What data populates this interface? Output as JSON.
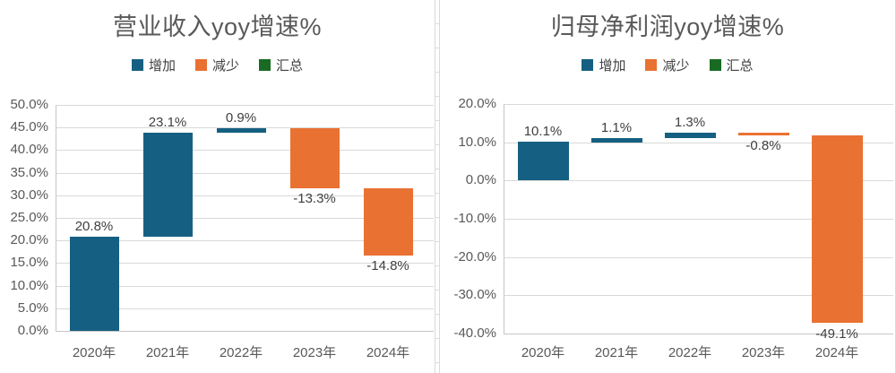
{
  "colors": {
    "increase": "#156082",
    "decrease": "#e97132",
    "total": "#196b24",
    "title_text": "#595959",
    "axis_text": "#595959",
    "data_label_text": "#404040",
    "legend_text": "#404040",
    "gridline": "#d9d9d9",
    "axis_line": "#c6c6c6",
    "chart_border": "#d9d9d9",
    "background": "#ffffff"
  },
  "chart_data": [
    {
      "type": "waterfall",
      "title": "营业收入yoy增速%",
      "legend_position": "top",
      "grid": true,
      "legend": [
        {
          "key": "increase",
          "label": "增加"
        },
        {
          "key": "decrease",
          "label": "减少"
        },
        {
          "key": "total",
          "label": "汇总"
        }
      ],
      "categories": [
        "2020年",
        "2021年",
        "2022年",
        "2023年",
        "2024年"
      ],
      "bars": [
        {
          "category": "2020年",
          "change_pct": 20.8,
          "start": 0.0,
          "end": 20.8,
          "kind": "increase",
          "label": "20.8%",
          "label_position": "above"
        },
        {
          "category": "2021年",
          "change_pct": 23.1,
          "start": 20.8,
          "end": 43.9,
          "kind": "increase",
          "label": "23.1%",
          "label_position": "above"
        },
        {
          "category": "2022年",
          "change_pct": 0.9,
          "start": 43.9,
          "end": 44.8,
          "kind": "increase",
          "label": "0.9%",
          "label_position": "above"
        },
        {
          "category": "2023年",
          "change_pct": -13.3,
          "start": 44.8,
          "end": 31.5,
          "kind": "decrease",
          "label": "-13.3%",
          "label_position": "below"
        },
        {
          "category": "2024年",
          "change_pct": -14.8,
          "start": 31.5,
          "end": 16.7,
          "kind": "decrease",
          "label": "-14.8%",
          "label_position": "below"
        }
      ],
      "ylim": [
        0,
        50
      ],
      "ytick_step": 5,
      "yticks": [
        {
          "value": 0,
          "label": "0.0%"
        },
        {
          "value": 5,
          "label": "5.0%"
        },
        {
          "value": 10,
          "label": "10.0%"
        },
        {
          "value": 15,
          "label": "15.0%"
        },
        {
          "value": 20,
          "label": "20.0%"
        },
        {
          "value": 25,
          "label": "25.0%"
        },
        {
          "value": 30,
          "label": "30.0%"
        },
        {
          "value": 35,
          "label": "35.0%"
        },
        {
          "value": 40,
          "label": "40.0%"
        },
        {
          "value": 45,
          "label": "45.0%"
        },
        {
          "value": 50,
          "label": "50.0%"
        }
      ]
    },
    {
      "type": "waterfall",
      "title": "归母净利润yoy增速%",
      "legend_position": "top",
      "grid": true,
      "legend": [
        {
          "key": "increase",
          "label": "增加"
        },
        {
          "key": "decrease",
          "label": "减少"
        },
        {
          "key": "total",
          "label": "汇总"
        }
      ],
      "categories": [
        "2020年",
        "2021年",
        "2022年",
        "2023年",
        "2024年"
      ],
      "bars": [
        {
          "category": "2020年",
          "change_pct": 10.1,
          "start": 0.0,
          "end": 10.1,
          "kind": "increase",
          "label": "10.1%",
          "label_position": "above"
        },
        {
          "category": "2021年",
          "change_pct": 1.1,
          "start": 10.1,
          "end": 11.2,
          "kind": "increase",
          "label": "1.1%",
          "label_position": "above"
        },
        {
          "category": "2022年",
          "change_pct": 1.3,
          "start": 11.2,
          "end": 12.5,
          "kind": "increase",
          "label": "1.3%",
          "label_position": "above"
        },
        {
          "category": "2023年",
          "change_pct": -0.8,
          "start": 12.5,
          "end": 11.7,
          "kind": "decrease",
          "label": "-0.8%",
          "label_position": "below"
        },
        {
          "category": "2024年",
          "change_pct": -49.1,
          "start": 11.7,
          "end": -37.4,
          "kind": "decrease",
          "label": "-49.1%",
          "label_position": "below"
        }
      ],
      "ylim": [
        -40,
        20
      ],
      "ytick_step": 10,
      "yticks": [
        {
          "value": -40,
          "label": "-40.0%"
        },
        {
          "value": -30,
          "label": "-30.0%"
        },
        {
          "value": -20,
          "label": "-20.0%"
        },
        {
          "value": -10,
          "label": "-10.0%"
        },
        {
          "value": 0,
          "label": "0.0%"
        },
        {
          "value": 10,
          "label": "10.0%"
        },
        {
          "value": 20,
          "label": "20.0%"
        }
      ]
    }
  ]
}
